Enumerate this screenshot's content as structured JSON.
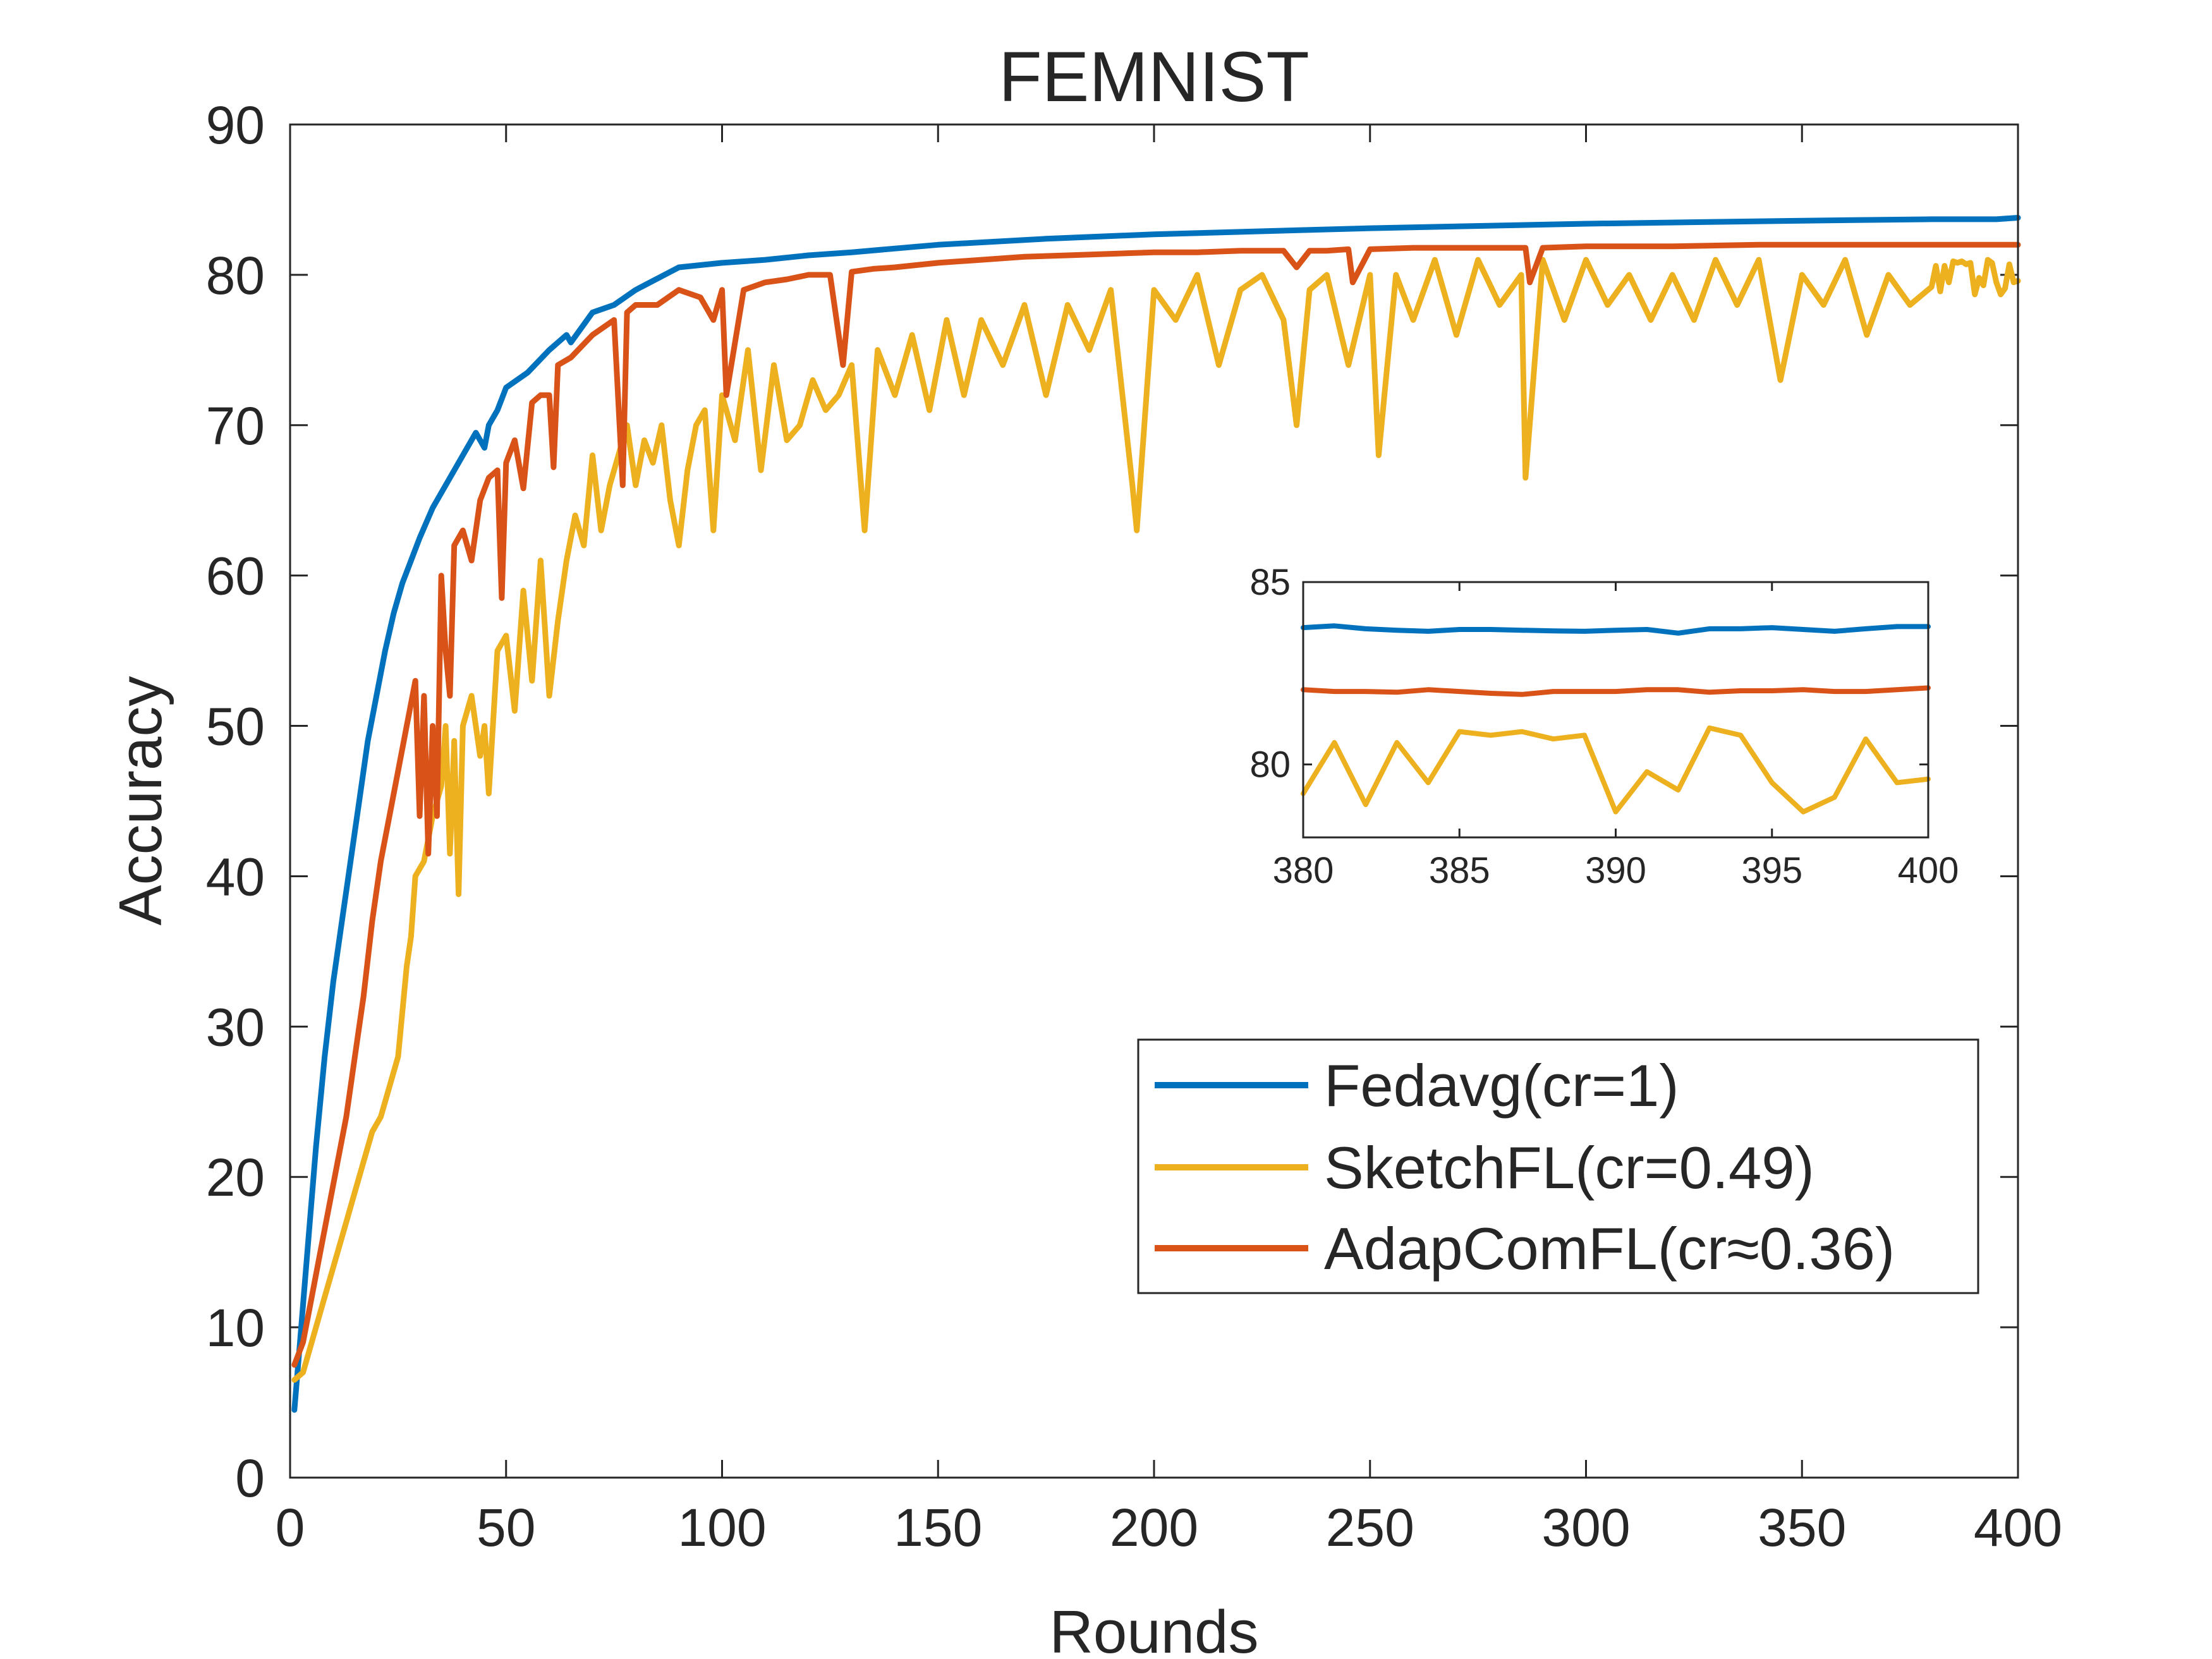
{
  "chart_data": {
    "type": "line",
    "title": "FEMNIST",
    "xlabel": "Rounds",
    "ylabel": "Accuracy",
    "xlim": [
      0,
      400
    ],
    "ylim": [
      0,
      90
    ],
    "xticks": [
      0,
      50,
      100,
      150,
      200,
      250,
      300,
      350,
      400
    ],
    "yticks": [
      0,
      10,
      20,
      30,
      40,
      50,
      60,
      70,
      80,
      90
    ],
    "legend_position": "bottom-right",
    "series": [
      {
        "name": "Fedavg(cr=1)",
        "color": "#0072BD",
        "x": [
          1,
          2,
          4,
          6,
          8,
          10,
          12,
          14,
          16,
          18,
          20,
          22,
          24,
          26,
          28,
          30,
          33,
          36,
          40,
          43,
          45,
          46,
          48,
          50,
          55,
          60,
          64,
          65,
          70,
          75,
          80,
          90,
          100,
          110,
          120,
          130,
          150,
          175,
          200,
          250,
          300,
          350,
          380,
          385,
          390,
          395,
          400
        ],
        "y": [
          4.5,
          8,
          15,
          22,
          28,
          33,
          37,
          41,
          45,
          49,
          52,
          55,
          57.5,
          59.5,
          61,
          62.5,
          64.5,
          66,
          68,
          69.5,
          68.5,
          70,
          71,
          72.5,
          73.5,
          75,
          76,
          75.5,
          77.5,
          78,
          79,
          80.5,
          80.8,
          81,
          81.3,
          81.5,
          82,
          82.4,
          82.7,
          83.1,
          83.4,
          83.6,
          83.7,
          83.7,
          83.7,
          83.7,
          83.8
        ]
      },
      {
        "name": "SketchFL(cr=0.49)",
        "color": "#EDB120",
        "x": [
          1,
          3,
          5,
          7,
          9,
          11,
          13,
          15,
          17,
          19,
          21,
          23,
          25,
          27,
          28,
          29,
          31,
          33,
          35,
          36,
          37,
          38,
          39,
          40,
          42,
          44,
          45,
          46,
          48,
          50,
          52,
          54,
          56,
          58,
          60,
          62,
          64,
          66,
          68,
          70,
          72,
          74,
          76,
          78,
          80,
          82,
          84,
          86,
          88,
          90,
          92,
          94,
          96,
          98,
          100,
          103,
          106,
          109,
          112,
          115,
          118,
          121,
          124,
          127,
          130,
          133,
          136,
          140,
          144,
          148,
          152,
          156,
          160,
          165,
          170,
          175,
          180,
          185,
          190,
          195,
          196,
          200,
          205,
          210,
          215,
          220,
          225,
          230,
          233,
          236,
          240,
          245,
          250,
          252,
          256,
          260,
          265,
          270,
          275,
          280,
          285,
          286,
          290,
          295,
          300,
          305,
          310,
          315,
          320,
          325,
          330,
          335,
          340,
          345,
          350,
          355,
          360,
          365,
          370,
          375,
          380,
          381,
          382,
          383,
          384,
          385,
          386,
          387,
          388,
          389,
          390,
          391,
          392,
          393,
          394,
          395,
          396,
          397,
          398,
          399,
          400
        ],
        "y": [
          6.5,
          7,
          9,
          11,
          13,
          15,
          17,
          19,
          21,
          23,
          24,
          26,
          28,
          34,
          36,
          40,
          41,
          44,
          46,
          50,
          41.5,
          49,
          38.8,
          50,
          52,
          48,
          50,
          45.5,
          55,
          56,
          51,
          59,
          53,
          61,
          52,
          57,
          61,
          64,
          62,
          68,
          63,
          66,
          68,
          70,
          66,
          69,
          67.5,
          70,
          65,
          62,
          67,
          70,
          71,
          63,
          72,
          69,
          75,
          67,
          74,
          69,
          70,
          73,
          71,
          72,
          74,
          63,
          75,
          72,
          76,
          71,
          77,
          72,
          77,
          74,
          78,
          72,
          78,
          75,
          79,
          66,
          63,
          79,
          77,
          80,
          74,
          79,
          80,
          77,
          70,
          79,
          80,
          74,
          80,
          68,
          80,
          77,
          81,
          76,
          81,
          78,
          80,
          66.5,
          81,
          77,
          81,
          78,
          80,
          77,
          80,
          77,
          81,
          78,
          81,
          73,
          80,
          78,
          81,
          76,
          80,
          78,
          79.2,
          80.6,
          78.9,
          80.6,
          79.5,
          80.9,
          80.8,
          80.9,
          80.7,
          80.8,
          78.7,
          79.8,
          79.3,
          81,
          80.8,
          79.5,
          78.7,
          79.1,
          80.7,
          79.5,
          79.6
        ]
      },
      {
        "name": "AdapComFL(cr≈0.36)",
        "color": "#D95319",
        "x": [
          1,
          3,
          5,
          7,
          9,
          11,
          13,
          15,
          17,
          19,
          21,
          23,
          25,
          27,
          29,
          30,
          31,
          32,
          33,
          34,
          35,
          36,
          37,
          38,
          40,
          42,
          44,
          46,
          48,
          49,
          50,
          52,
          54,
          56,
          58,
          60,
          61,
          62,
          65,
          70,
          75,
          77,
          78,
          80,
          85,
          90,
          95,
          98,
          100,
          101,
          105,
          110,
          115,
          120,
          125,
          128,
          130,
          135,
          140,
          150,
          160,
          170,
          180,
          190,
          200,
          210,
          220,
          230,
          233,
          236,
          240,
          245,
          246,
          250,
          260,
          270,
          280,
          286,
          287,
          290,
          300,
          320,
          340,
          360,
          380,
          385,
          390,
          395,
          400
        ],
        "y": [
          7.5,
          9,
          12,
          15,
          18,
          21,
          24,
          28,
          32,
          37,
          41,
          44,
          47,
          50,
          53,
          44,
          52,
          41.5,
          50,
          44,
          60,
          55,
          52,
          62,
          63,
          61,
          65,
          66.5,
          67,
          58.5,
          67.5,
          69,
          65.8,
          71.5,
          72,
          72,
          67.2,
          74,
          74.5,
          76,
          77,
          66,
          77.5,
          78,
          78,
          79,
          78.5,
          77,
          79,
          72,
          79,
          79.5,
          79.7,
          80,
          80,
          74,
          80.2,
          80.4,
          80.5,
          80.8,
          81,
          81.2,
          81.3,
          81.4,
          81.5,
          81.5,
          81.6,
          81.6,
          80.5,
          81.6,
          81.6,
          81.7,
          79.5,
          81.7,
          81.8,
          81.8,
          81.8,
          81.8,
          79.5,
          81.8,
          81.9,
          81.9,
          82,
          82,
          82,
          82,
          82,
          82,
          82
        ]
      }
    ],
    "inset": {
      "xlim": [
        380,
        400
      ],
      "ylim": [
        78,
        85
      ],
      "xticks": [
        380,
        385,
        390,
        395,
        400
      ],
      "yticks": [
        80,
        85
      ],
      "series": [
        {
          "name": "Fedavg(cr=1)",
          "x": [
            380,
            381,
            382,
            383,
            384,
            385,
            386,
            387,
            388,
            389,
            390,
            391,
            392,
            393,
            394,
            395,
            396,
            397,
            398,
            399,
            400
          ],
          "y": [
            83.75,
            83.8,
            83.72,
            83.68,
            83.65,
            83.7,
            83.7,
            83.68,
            83.66,
            83.65,
            83.68,
            83.7,
            83.6,
            83.72,
            83.72,
            83.75,
            83.7,
            83.65,
            83.72,
            83.78,
            83.78
          ]
        },
        {
          "name": "SketchFL(cr=0.49)",
          "x": [
            380,
            381,
            382,
            383,
            384,
            385,
            386,
            387,
            388,
            389,
            390,
            391,
            392,
            393,
            394,
            395,
            396,
            397,
            398,
            399,
            400
          ],
          "y": [
            79.2,
            80.6,
            78.9,
            80.6,
            79.5,
            80.9,
            80.8,
            80.9,
            80.7,
            80.8,
            78.7,
            79.8,
            79.3,
            81,
            80.8,
            79.5,
            78.7,
            79.1,
            80.7,
            79.5,
            79.6
          ]
        },
        {
          "name": "AdapComFL(cr≈0.36)",
          "x": [
            380,
            381,
            382,
            383,
            384,
            385,
            386,
            387,
            388,
            389,
            390,
            391,
            392,
            393,
            394,
            395,
            396,
            397,
            398,
            399,
            400
          ],
          "y": [
            82.05,
            82,
            82,
            81.98,
            82.05,
            82,
            81.95,
            81.92,
            82,
            82,
            82,
            82.05,
            82.05,
            81.98,
            82.02,
            82.02,
            82.05,
            82,
            82,
            82.05,
            82.1
          ]
        }
      ]
    }
  }
}
